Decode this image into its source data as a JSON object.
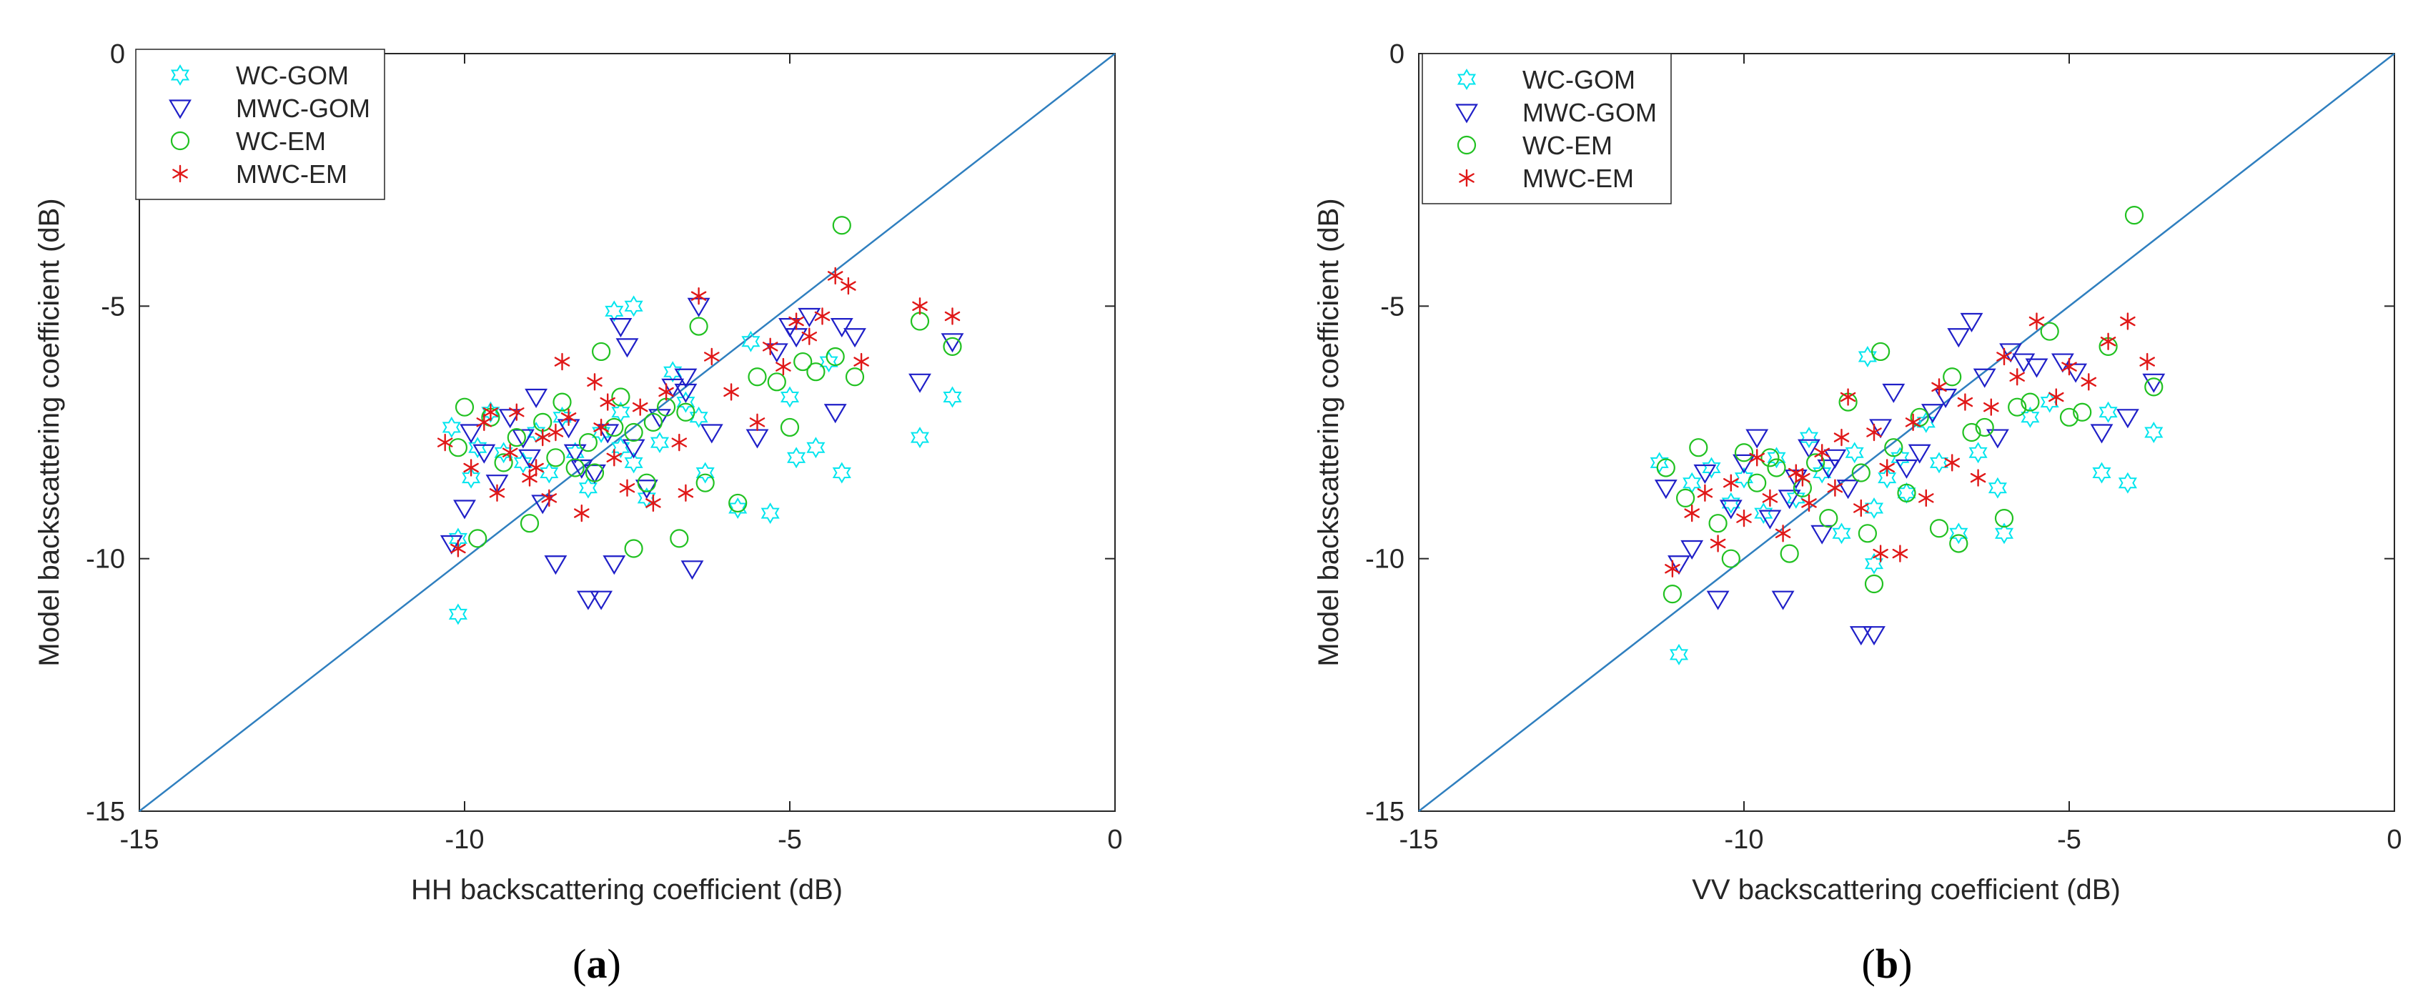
{
  "chart_data": [
    {
      "type": "scatter",
      "panel_label": "a",
      "xlabel": "HH backscattering coefficient (dB)",
      "ylabel": "Model backscattering coefficient (dB)",
      "xlim": [
        -15,
        0
      ],
      "ylim": [
        -15,
        0
      ],
      "xticks": [
        -15,
        -10,
        -5,
        0
      ],
      "yticks": [
        -15,
        -10,
        -5,
        0
      ],
      "grid": false,
      "legend_position": "top-left",
      "reference_line": {
        "x": [
          -15,
          0
        ],
        "y": [
          -15,
          0
        ],
        "color": "#2f7fbf"
      },
      "series": [
        {
          "name": "WC-GOM",
          "marker": "hexagram",
          "color": "#00e5ee",
          "x": [
            -10.2,
            -10.1,
            -9.8,
            -9.6,
            -9.4,
            -9.1,
            -8.9,
            -8.7,
            -8.5,
            -8.3,
            -8.1,
            -7.9,
            -7.7,
            -7.6,
            -7.4,
            -7.2,
            -7.0,
            -6.8,
            -6.6,
            -6.4,
            -6.3,
            -5.8,
            -5.6,
            -5.3,
            -5.0,
            -4.9,
            -4.6,
            -4.4,
            -4.2,
            -3.0,
            -2.5,
            -7.6,
            -7.4,
            -10.1,
            -9.9
          ],
          "y": [
            -7.4,
            -11.1,
            -7.8,
            -7.1,
            -7.9,
            -8.1,
            -7.5,
            -8.3,
            -7.2,
            -7.9,
            -8.6,
            -7.5,
            -5.1,
            -7.1,
            -5.0,
            -8.8,
            -7.7,
            -6.3,
            -6.9,
            -7.2,
            -8.3,
            -9.0,
            -5.7,
            -9.1,
            -6.8,
            -8.0,
            -7.8,
            -6.1,
            -8.3,
            -7.6,
            -6.8,
            -7.8,
            -8.1,
            -9.6,
            -8.4
          ]
        },
        {
          "name": "MWC-GOM",
          "marker": "triangle-down",
          "color": "#1f1fc8",
          "x": [
            -10.2,
            -10.0,
            -9.9,
            -9.7,
            -9.5,
            -9.3,
            -9.1,
            -8.9,
            -8.8,
            -8.6,
            -8.4,
            -8.2,
            -8.1,
            -7.9,
            -7.7,
            -7.6,
            -7.4,
            -7.2,
            -7.0,
            -6.8,
            -6.6,
            -6.5,
            -6.4,
            -6.2,
            -5.5,
            -5.2,
            -5.0,
            -4.9,
            -4.7,
            -4.3,
            -4.2,
            -4.0,
            -3.0,
            -2.5,
            -8.3,
            -8.0,
            -7.8,
            -7.5,
            -9.0,
            -6.6
          ],
          "y": [
            -9.7,
            -9.0,
            -7.5,
            -7.9,
            -8.5,
            -7.2,
            -7.6,
            -6.8,
            -8.9,
            -10.1,
            -7.4,
            -8.2,
            -10.8,
            -10.8,
            -10.1,
            -5.4,
            -7.8,
            -8.6,
            -7.2,
            -6.6,
            -6.4,
            -10.2,
            -5.0,
            -7.5,
            -7.6,
            -5.9,
            -5.4,
            -5.6,
            -5.2,
            -7.1,
            -5.4,
            -5.6,
            -6.5,
            -5.7,
            -7.9,
            -8.3,
            -7.5,
            -5.8,
            -8.0,
            -6.7
          ]
        },
        {
          "name": "WC-EM",
          "marker": "circle",
          "color": "#21c121",
          "x": [
            -10.1,
            -10.0,
            -9.8,
            -9.6,
            -9.4,
            -9.2,
            -9.0,
            -8.8,
            -8.6,
            -8.5,
            -8.3,
            -8.1,
            -7.9,
            -7.7,
            -7.6,
            -7.4,
            -7.2,
            -7.1,
            -6.9,
            -6.7,
            -6.6,
            -6.4,
            -6.3,
            -5.8,
            -5.5,
            -5.2,
            -5.0,
            -4.8,
            -4.6,
            -4.3,
            -4.2,
            -4.0,
            -3.0,
            -2.5,
            -7.4,
            -8.0
          ],
          "y": [
            -7.8,
            -7.0,
            -9.6,
            -7.2,
            -8.1,
            -7.6,
            -9.3,
            -7.3,
            -8.0,
            -6.9,
            -8.2,
            -7.7,
            -5.9,
            -7.4,
            -6.8,
            -9.8,
            -8.5,
            -7.3,
            -7.0,
            -9.6,
            -7.1,
            -5.4,
            -8.5,
            -8.9,
            -6.4,
            -6.5,
            -7.4,
            -6.1,
            -6.3,
            -6.0,
            -3.4,
            -6.4,
            -5.3,
            -5.8,
            -7.5,
            -8.3
          ]
        },
        {
          "name": "MWC-EM",
          "marker": "asterisk",
          "color": "#e01818",
          "x": [
            -10.3,
            -10.1,
            -9.9,
            -9.7,
            -9.5,
            -9.3,
            -9.2,
            -9.0,
            -8.8,
            -8.7,
            -8.5,
            -8.4,
            -8.2,
            -8.0,
            -7.9,
            -7.7,
            -7.5,
            -7.3,
            -7.1,
            -6.9,
            -6.7,
            -6.6,
            -6.4,
            -6.2,
            -5.9,
            -5.5,
            -5.3,
            -5.1,
            -4.9,
            -4.7,
            -4.5,
            -4.3,
            -4.1,
            -3.9,
            -3.0,
            -2.5,
            -8.6,
            -8.9,
            -9.6,
            -7.8
          ],
          "y": [
            -7.7,
            -9.8,
            -8.2,
            -7.3,
            -8.7,
            -7.9,
            -7.1,
            -8.4,
            -7.6,
            -8.8,
            -6.1,
            -7.2,
            -9.1,
            -6.5,
            -7.4,
            -8.0,
            -8.6,
            -7.0,
            -8.9,
            -6.7,
            -7.7,
            -8.7,
            -4.8,
            -6.0,
            -6.7,
            -7.3,
            -5.8,
            -6.2,
            -5.3,
            -5.6,
            -5.2,
            -4.4,
            -4.6,
            -6.1,
            -5.0,
            -5.2,
            -7.5,
            -8.2,
            -7.1,
            -6.9
          ]
        }
      ]
    },
    {
      "type": "scatter",
      "panel_label": "b",
      "xlabel": "VV backscattering coefficient (dB)",
      "ylabel": "Model backscattering coefficient (dB)",
      "xlim": [
        -15,
        0
      ],
      "ylim": [
        -15,
        0
      ],
      "xticks": [
        -15,
        -10,
        -5,
        0
      ],
      "yticks": [
        -15,
        -10,
        -5,
        0
      ],
      "grid": false,
      "legend_position": "top-left",
      "reference_line": {
        "x": [
          -15,
          0
        ],
        "y": [
          -15,
          0
        ],
        "color": "#2f7fbf"
      },
      "series": [
        {
          "name": "WC-GOM",
          "marker": "hexagram",
          "color": "#00e5ee",
          "x": [
            -11.3,
            -11.0,
            -10.8,
            -10.5,
            -10.2,
            -10.0,
            -9.7,
            -9.5,
            -9.2,
            -9.0,
            -8.8,
            -8.5,
            -8.3,
            -8.1,
            -8.0,
            -7.8,
            -7.5,
            -7.2,
            -7.0,
            -6.7,
            -6.4,
            -6.1,
            -6.0,
            -5.6,
            -5.3,
            -4.5,
            -4.4,
            -4.1,
            -3.7,
            -8.0,
            -7.6
          ],
          "y": [
            -8.1,
            -11.9,
            -8.5,
            -8.2,
            -8.9,
            -8.4,
            -9.1,
            -8.0,
            -8.8,
            -7.6,
            -8.3,
            -9.5,
            -7.9,
            -6.0,
            -10.1,
            -8.4,
            -8.7,
            -7.3,
            -8.1,
            -9.5,
            -7.9,
            -8.6,
            -9.5,
            -7.2,
            -6.9,
            -8.3,
            -7.1,
            -8.5,
            -7.5,
            -9.0,
            -8.0
          ]
        },
        {
          "name": "MWC-GOM",
          "marker": "triangle-down",
          "color": "#1f1fc8",
          "x": [
            -11.2,
            -11.0,
            -10.8,
            -10.6,
            -10.4,
            -10.2,
            -10.0,
            -9.8,
            -9.6,
            -9.4,
            -9.2,
            -9.0,
            -8.8,
            -8.6,
            -8.4,
            -8.2,
            -8.0,
            -7.9,
            -7.7,
            -7.5,
            -7.3,
            -7.1,
            -6.9,
            -6.7,
            -6.5,
            -6.3,
            -6.1,
            -5.9,
            -5.7,
            -5.5,
            -5.1,
            -4.9,
            -4.5,
            -4.1,
            -3.7,
            -9.3,
            -8.7
          ],
          "y": [
            -8.6,
            -10.1,
            -9.8,
            -8.3,
            -10.8,
            -9.0,
            -8.1,
            -7.6,
            -9.2,
            -10.8,
            -8.4,
            -7.8,
            -9.5,
            -8.0,
            -8.6,
            -11.5,
            -11.5,
            -7.4,
            -6.7,
            -8.2,
            -7.9,
            -7.1,
            -6.8,
            -5.6,
            -5.3,
            -6.4,
            -7.6,
            -5.9,
            -6.1,
            -6.2,
            -6.1,
            -6.3,
            -7.5,
            -7.2,
            -6.5,
            -8.8,
            -8.2
          ]
        },
        {
          "name": "WC-EM",
          "marker": "circle",
          "color": "#21c121",
          "x": [
            -11.2,
            -11.1,
            -10.9,
            -10.7,
            -10.4,
            -10.2,
            -10.0,
            -9.8,
            -9.5,
            -9.3,
            -9.1,
            -8.9,
            -8.7,
            -8.4,
            -8.2,
            -8.0,
            -7.9,
            -7.7,
            -7.5,
            -7.3,
            -7.0,
            -6.8,
            -6.7,
            -6.5,
            -6.3,
            -6.0,
            -5.8,
            -5.6,
            -5.3,
            -5.0,
            -4.8,
            -4.4,
            -4.0,
            -3.7,
            -8.1,
            -9.6
          ],
          "y": [
            -8.2,
            -10.7,
            -8.8,
            -7.8,
            -9.3,
            -10.0,
            -7.9,
            -8.5,
            -8.2,
            -9.9,
            -8.6,
            -8.1,
            -9.2,
            -6.9,
            -8.3,
            -10.5,
            -5.9,
            -7.8,
            -8.7,
            -7.2,
            -9.4,
            -6.4,
            -9.7,
            -7.5,
            -7.4,
            -9.2,
            -7.0,
            -6.9,
            -5.5,
            -7.2,
            -7.1,
            -5.8,
            -3.2,
            -6.6,
            -9.5,
            -8.0
          ]
        },
        {
          "name": "MWC-EM",
          "marker": "asterisk",
          "color": "#e01818",
          "x": [
            -11.1,
            -10.8,
            -10.6,
            -10.4,
            -10.2,
            -10.0,
            -9.8,
            -9.6,
            -9.4,
            -9.2,
            -9.0,
            -8.8,
            -8.6,
            -8.4,
            -8.2,
            -8.0,
            -7.8,
            -7.6,
            -7.4,
            -7.2,
            -7.0,
            -6.8,
            -6.6,
            -6.4,
            -6.2,
            -6.0,
            -5.8,
            -5.5,
            -5.2,
            -5.0,
            -4.7,
            -4.4,
            -4.1,
            -3.8,
            -8.5,
            -9.1,
            -7.9
          ],
          "y": [
            -10.2,
            -9.1,
            -8.7,
            -9.7,
            -8.5,
            -9.2,
            -8.0,
            -8.8,
            -9.5,
            -8.3,
            -8.9,
            -7.9,
            -8.6,
            -6.8,
            -9.0,
            -7.5,
            -8.2,
            -9.9,
            -7.3,
            -8.8,
            -6.6,
            -8.1,
            -6.9,
            -8.4,
            -7.0,
            -6.0,
            -6.4,
            -5.3,
            -6.8,
            -6.2,
            -6.5,
            -5.7,
            -5.3,
            -6.1,
            -7.6,
            -8.4,
            -9.9
          ]
        }
      ]
    }
  ]
}
